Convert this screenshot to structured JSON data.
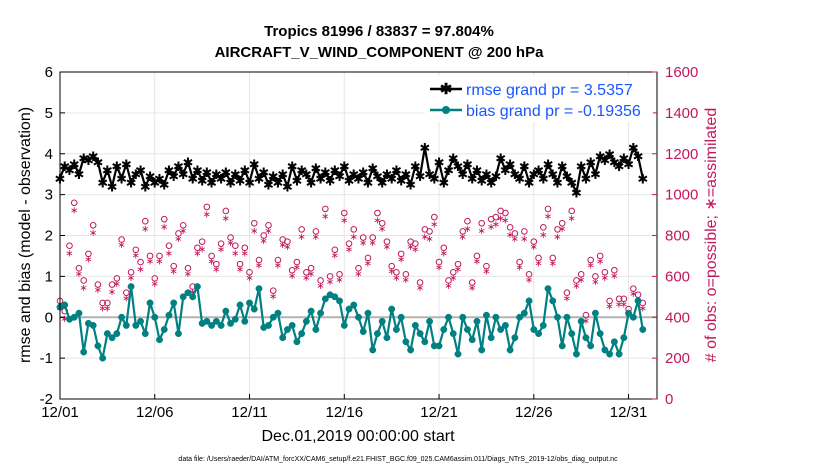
{
  "chart_data": {
    "type": "line",
    "title_line1": "Tropics 81996 / 83837 = 97.804%",
    "title_line2": "AIRCRAFT_V_WIND_COMPONENT @ 200 hPa",
    "xlabel": "Dec.01,2019 00:00:00 start",
    "ylabel": "rmse and bias (model - observation)",
    "ylabel_right": "# of obs: o=possible; ∗=assimilated",
    "footer": "data file: /Users/raeder/DAI/ATM_forcXX/CAM6_setup/f.e21.FHIST_BGC.f09_025.CAM6assim.011/Diags_NTrS_2019-12/obs_diag_output.nc",
    "xlim": [
      0,
      31.5
    ],
    "ylim": [
      -2,
      6
    ],
    "ylim_right": [
      0,
      1600
    ],
    "x_ticks": [
      0,
      5,
      10,
      15,
      20,
      25,
      30
    ],
    "x_tick_labels": [
      "12/01",
      "12/06",
      "12/11",
      "12/16",
      "12/21",
      "12/26",
      "12/31"
    ],
    "y_ticks": [
      -2,
      -1,
      0,
      1,
      2,
      3,
      4,
      5,
      6
    ],
    "y_tick_labels": [
      "-2",
      "-1",
      "0",
      "1",
      "2",
      "3",
      "4",
      "5",
      "6"
    ],
    "y_right_ticks": [
      0,
      200,
      400,
      600,
      800,
      1000,
      1200,
      1400,
      1600
    ],
    "y_right_tick_labels": [
      "0",
      "200",
      "400",
      "600",
      "800",
      "1000",
      "1200",
      "1400",
      "1600"
    ],
    "n_points": 124,
    "x_step_days": 0.25,
    "series": [
      {
        "name": "rmse",
        "legend": "rmse grand pr = 3.5357",
        "color": "#000000",
        "values": [
          3.4,
          3.7,
          3.6,
          3.75,
          3.5,
          3.9,
          3.85,
          3.95,
          3.8,
          3.3,
          3.6,
          3.2,
          3.7,
          3.4,
          3.75,
          3.3,
          3.5,
          3.6,
          3.2,
          3.45,
          3.3,
          3.4,
          3.25,
          3.6,
          3.45,
          3.7,
          3.5,
          3.8,
          3.4,
          3.6,
          3.35,
          3.55,
          3.3,
          3.5,
          3.4,
          3.55,
          3.3,
          3.5,
          3.35,
          3.6,
          3.3,
          3.75,
          3.4,
          3.55,
          3.25,
          3.45,
          3.3,
          3.5,
          3.2,
          3.7,
          3.35,
          3.6,
          3.5,
          3.3,
          3.65,
          3.4,
          3.55,
          3.35,
          3.6,
          3.45,
          3.7,
          3.35,
          3.5,
          3.4,
          3.55,
          3.3,
          3.65,
          3.45,
          3.3,
          3.5,
          3.4,
          3.6,
          3.35,
          3.5,
          3.25,
          3.7,
          3.45,
          4.15,
          3.5,
          3.4,
          3.8,
          3.3,
          3.6,
          3.9,
          3.7,
          3.5,
          3.75,
          3.4,
          3.6,
          3.35,
          3.5,
          3.3,
          3.45,
          3.9,
          3.6,
          3.75,
          3.5,
          3.4,
          3.7,
          3.3,
          3.5,
          3.6,
          3.4,
          3.75,
          3.5,
          3.3,
          3.7,
          3.45,
          3.3,
          3.05,
          3.7,
          3.4,
          3.8,
          3.5,
          3.95,
          3.85,
          4.0,
          3.8,
          3.7,
          3.9,
          3.75,
          4.15,
          3.95,
          3.4
        ]
      },
      {
        "name": "bias",
        "legend": "bias grand pr = -0.19356",
        "color": "#008080",
        "values": [
          0.25,
          0.3,
          -0.05,
          0.0,
          0.1,
          -0.85,
          -0.15,
          -0.2,
          -0.7,
          -1.0,
          -0.4,
          -0.5,
          -0.4,
          0.0,
          -0.2,
          0.75,
          -0.2,
          -0.1,
          -0.4,
          0.35,
          0.0,
          -0.55,
          -0.3,
          0.05,
          0.35,
          -0.4,
          0.5,
          0.6,
          0.5,
          0.75,
          -0.15,
          -0.1,
          -0.2,
          -0.1,
          -0.2,
          0.15,
          -0.15,
          -0.05,
          0.3,
          -0.1,
          0.35,
          0.2,
          0.7,
          -0.25,
          -0.2,
          0.0,
          0.1,
          -0.5,
          -0.3,
          -0.2,
          -0.6,
          -0.4,
          -0.1,
          0.15,
          -0.3,
          0.1,
          0.45,
          0.55,
          0.5,
          0.4,
          -0.2,
          0.2,
          0.3,
          0.0,
          -0.35,
          0.1,
          -0.8,
          -0.4,
          -0.1,
          -0.5,
          0.2,
          -0.3,
          0.0,
          -0.6,
          -0.8,
          -0.2,
          -0.4,
          -0.6,
          -0.1,
          -0.7,
          -0.7,
          -0.3,
          0.0,
          -0.4,
          -0.9,
          0.0,
          -0.3,
          -0.55,
          -0.1,
          -0.8,
          0.05,
          -0.5,
          0.0,
          -0.3,
          -0.2,
          -0.8,
          -0.5,
          0.0,
          0.1,
          0.4,
          -0.3,
          -0.4,
          -0.2,
          0.7,
          0.4,
          0.0,
          -0.7,
          0.0,
          -0.4,
          -0.9,
          -0.1,
          -0.5,
          -0.7,
          0.1,
          -0.4,
          -0.8,
          -0.9,
          -0.6,
          -0.9,
          -0.5,
          0.1,
          0.0,
          0.4,
          -0.3
        ]
      },
      {
        "name": "obs_possible",
        "marker": "o",
        "color": "#c2185b",
        "values": [
          480,
          430,
          750,
          960,
          640,
          580,
          710,
          850,
          560,
          470,
          470,
          560,
          590,
          780,
          520,
          620,
          730,
          670,
          870,
          700,
          590,
          700,
          880,
          750,
          650,
          810,
          850,
          640,
          550,
          740,
          770,
          940,
          700,
          660,
          760,
          920,
          790,
          750,
          660,
          740,
          620,
          860,
          680,
          800,
          850,
          530,
          680,
          780,
          770,
          630,
          670,
          830,
          620,
          640,
          820,
          580,
          930,
          600,
          730,
          610,
          910,
          760,
          830,
          640,
          790,
          690,
          790,
          910,
          860,
          770,
          650,
          620,
          710,
          610,
          770,
          760,
          570,
          830,
          820,
          890,
          670,
          740,
          580,
          620,
          660,
          820,
          870,
          570,
          700,
          860,
          650,
          880,
          890,
          920,
          910,
          840,
          810,
          670,
          820,
          610,
          770,
          690,
          840,
          930,
          690,
          830,
          860,
          520,
          920,
          580,
          610,
          410,
          680,
          600,
          700,
          620,
          480,
          630,
          490,
          490,
          440,
          540,
          510,
          470
        ]
      },
      {
        "name": "obs_assimilated",
        "marker": "*",
        "color": "#c2185b",
        "values": [
          450,
          400,
          720,
          930,
          620,
          550,
          690,
          820,
          540,
          450,
          450,
          530,
          570,
          760,
          500,
          600,
          710,
          640,
          840,
          680,
          570,
          680,
          850,
          720,
          630,
          790,
          830,
          620,
          530,
          720,
          740,
          910,
          680,
          640,
          740,
          890,
          770,
          720,
          640,
          720,
          600,
          830,
          660,
          780,
          830,
          510,
          660,
          760,
          750,
          610,
          650,
          800,
          600,
          620,
          800,
          560,
          900,
          580,
          710,
          590,
          880,
          740,
          800,
          620,
          770,
          670,
          770,
          880,
          840,
          750,
          630,
          600,
          690,
          590,
          750,
          740,
          550,
          800,
          790,
          860,
          650,
          720,
          560,
          600,
          640,
          800,
          840,
          550,
          680,
          830,
          630,
          850,
          860,
          890,
          880,
          810,
          790,
          650,
          790,
          590,
          750,
          670,
          810,
          900,
          670,
          800,
          840,
          500,
          890,
          560,
          590,
          390,
          660,
          580,
          680,
          600,
          460,
          610,
          470,
          470,
          420,
          520,
          490,
          450
        ]
      }
    ],
    "reference_line": 0
  }
}
